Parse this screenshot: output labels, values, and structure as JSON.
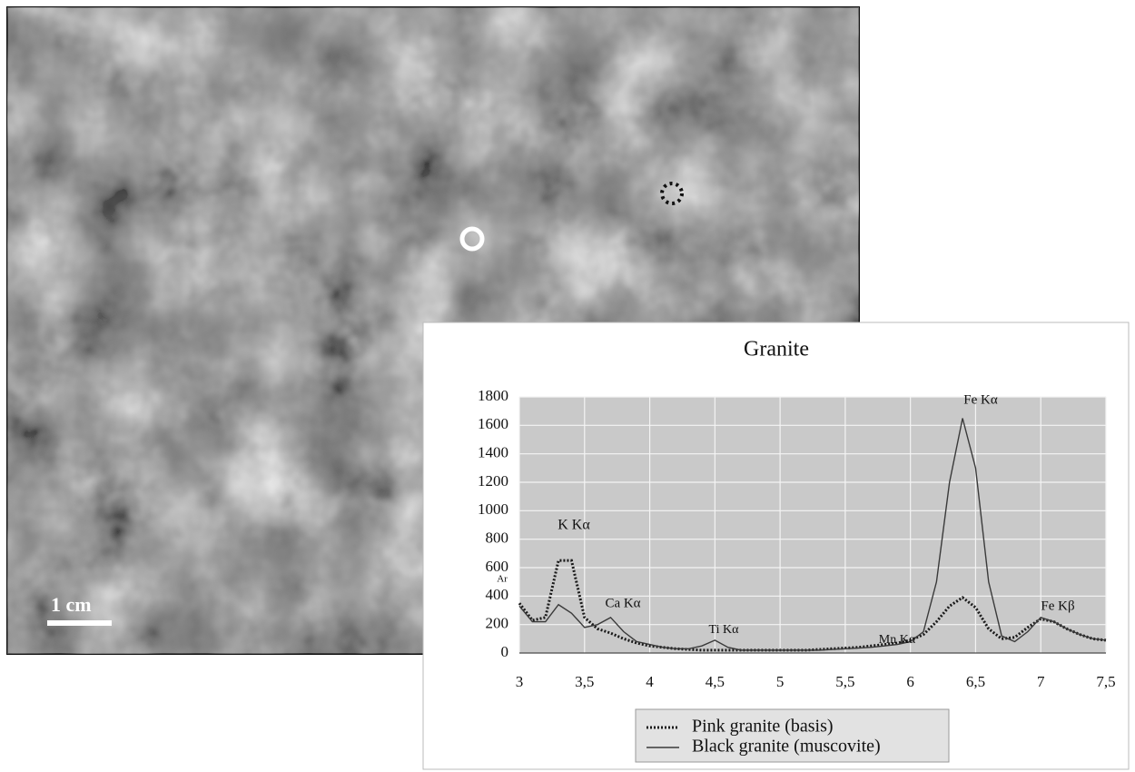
{
  "photo": {
    "scale_label": "1 cm"
  },
  "chart_data": {
    "type": "line",
    "title": "Granite",
    "x": [
      3.0,
      3.1,
      3.2,
      3.3,
      3.4,
      3.5,
      3.6,
      3.7,
      3.8,
      3.9,
      4.0,
      4.1,
      4.2,
      4.3,
      4.4,
      4.5,
      4.6,
      4.7,
      4.8,
      4.9,
      5.0,
      5.1,
      5.2,
      5.3,
      5.4,
      5.5,
      5.6,
      5.7,
      5.8,
      5.9,
      6.0,
      6.1,
      6.2,
      6.3,
      6.4,
      6.5,
      6.6,
      6.7,
      6.8,
      6.9,
      7.0,
      7.1,
      7.2,
      7.3,
      7.4,
      7.5
    ],
    "series": [
      {
        "name": "Pink granite (basis)",
        "color": "#1a1a1a",
        "dashed": true,
        "values": [
          350,
          230,
          250,
          650,
          650,
          250,
          170,
          140,
          100,
          70,
          50,
          40,
          30,
          25,
          20,
          20,
          20,
          20,
          20,
          20,
          20,
          20,
          20,
          25,
          30,
          35,
          40,
          50,
          60,
          70,
          90,
          130,
          220,
          330,
          390,
          320,
          170,
          100,
          110,
          180,
          240,
          220,
          170,
          130,
          100,
          90
        ]
      },
      {
        "name": "Black granite (muscovite)",
        "color": "#3a3a3a",
        "dashed": false,
        "values": [
          330,
          220,
          220,
          340,
          280,
          180,
          200,
          250,
          150,
          80,
          60,
          40,
          30,
          30,
          50,
          90,
          40,
          20,
          20,
          20,
          20,
          20,
          20,
          20,
          25,
          30,
          35,
          40,
          50,
          60,
          80,
          150,
          500,
          1200,
          1650,
          1300,
          500,
          120,
          80,
          150,
          250,
          220,
          170,
          130,
          100,
          90
        ]
      }
    ],
    "annotations": [
      "Ar",
      "K Kα",
      "Ca Kα",
      "Ti Kα",
      "Fe Kα",
      "Mn Kα",
      "Fe Kβ"
    ],
    "xlim": [
      3,
      7.5
    ],
    "xticks": [
      3,
      {
        "value": 3.5,
        "label": "3,5"
      },
      4,
      {
        "value": 4.5,
        "label": "4,5"
      },
      5,
      {
        "value": 5.5,
        "label": "5,5"
      },
      6,
      {
        "value": 6.5,
        "label": "6,5"
      },
      7,
      {
        "value": 7.5,
        "label": "7,5"
      }
    ],
    "ylim": [
      0,
      1800
    ],
    "yticks": [
      0,
      200,
      400,
      600,
      800,
      1000,
      1200,
      1400,
      1600,
      1800
    ],
    "grid": true
  }
}
